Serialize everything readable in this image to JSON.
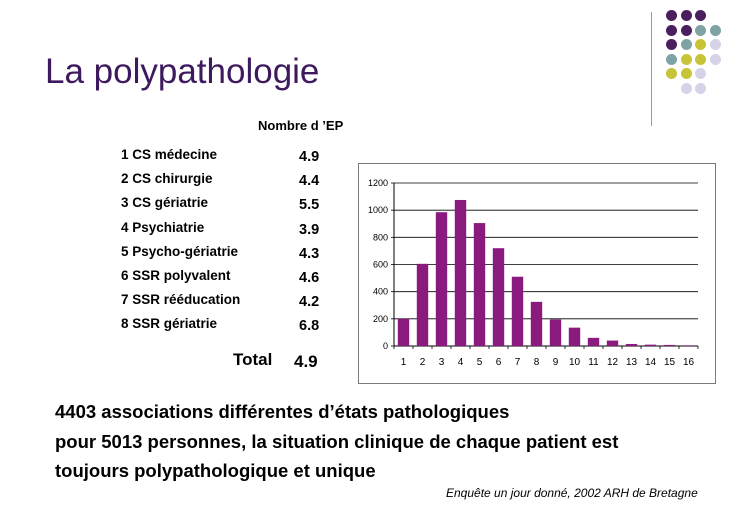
{
  "slide": {
    "title": "La polypathologie",
    "column_header": "Nombre d ’EP",
    "rows": [
      {
        "label": "1 CS médecine",
        "value": "4.9"
      },
      {
        "label": "2 CS chirurgie",
        "value": "4.4"
      },
      {
        "label": "3 CS gériatrie",
        "value": "5.5"
      },
      {
        "label": "4 Psychiatrie",
        "value": "3.9"
      },
      {
        "label": "5 Psycho-gériatrie",
        "value": "4.3"
      },
      {
        "label": "6 SSR polyvalent",
        "value": "4.6"
      },
      {
        "label": "7 SSR rééducation",
        "value": "4.2"
      },
      {
        "label": "8 SSR gériatrie",
        "value": "6.8"
      }
    ],
    "total_label": "Total",
    "total_value": "4.9",
    "bottom_lines": [
      "4403 associations différentes d’états pathologiques",
      "pour 5013 personnes, la situation clinique de chaque patient est",
      "toujours polypathologique et unique"
    ],
    "source": "Enquête un jour donné, 2002 ARH de Bretagne"
  },
  "colors": {
    "title": "#3d1a5e",
    "bar": "#8b1a7f",
    "dot_purple": "#4b1f5e",
    "dot_teal": "#7fa3a5",
    "dot_olive": "#c7c437",
    "dot_lavender": "#d6d3e8"
  },
  "chart_data": {
    "type": "bar",
    "categories": [
      "1",
      "2",
      "3",
      "4",
      "5",
      "6",
      "7",
      "8",
      "9",
      "10",
      "11",
      "12",
      "13",
      "14",
      "15",
      "16"
    ],
    "values": [
      200,
      605,
      985,
      1075,
      905,
      720,
      510,
      325,
      195,
      135,
      60,
      40,
      15,
      10,
      8,
      5
    ],
    "yticks": [
      0,
      200,
      400,
      600,
      800,
      1000,
      1200
    ],
    "ylim": [
      0,
      1200
    ],
    "title": "",
    "xlabel": "",
    "ylabel": "",
    "grid": true
  }
}
